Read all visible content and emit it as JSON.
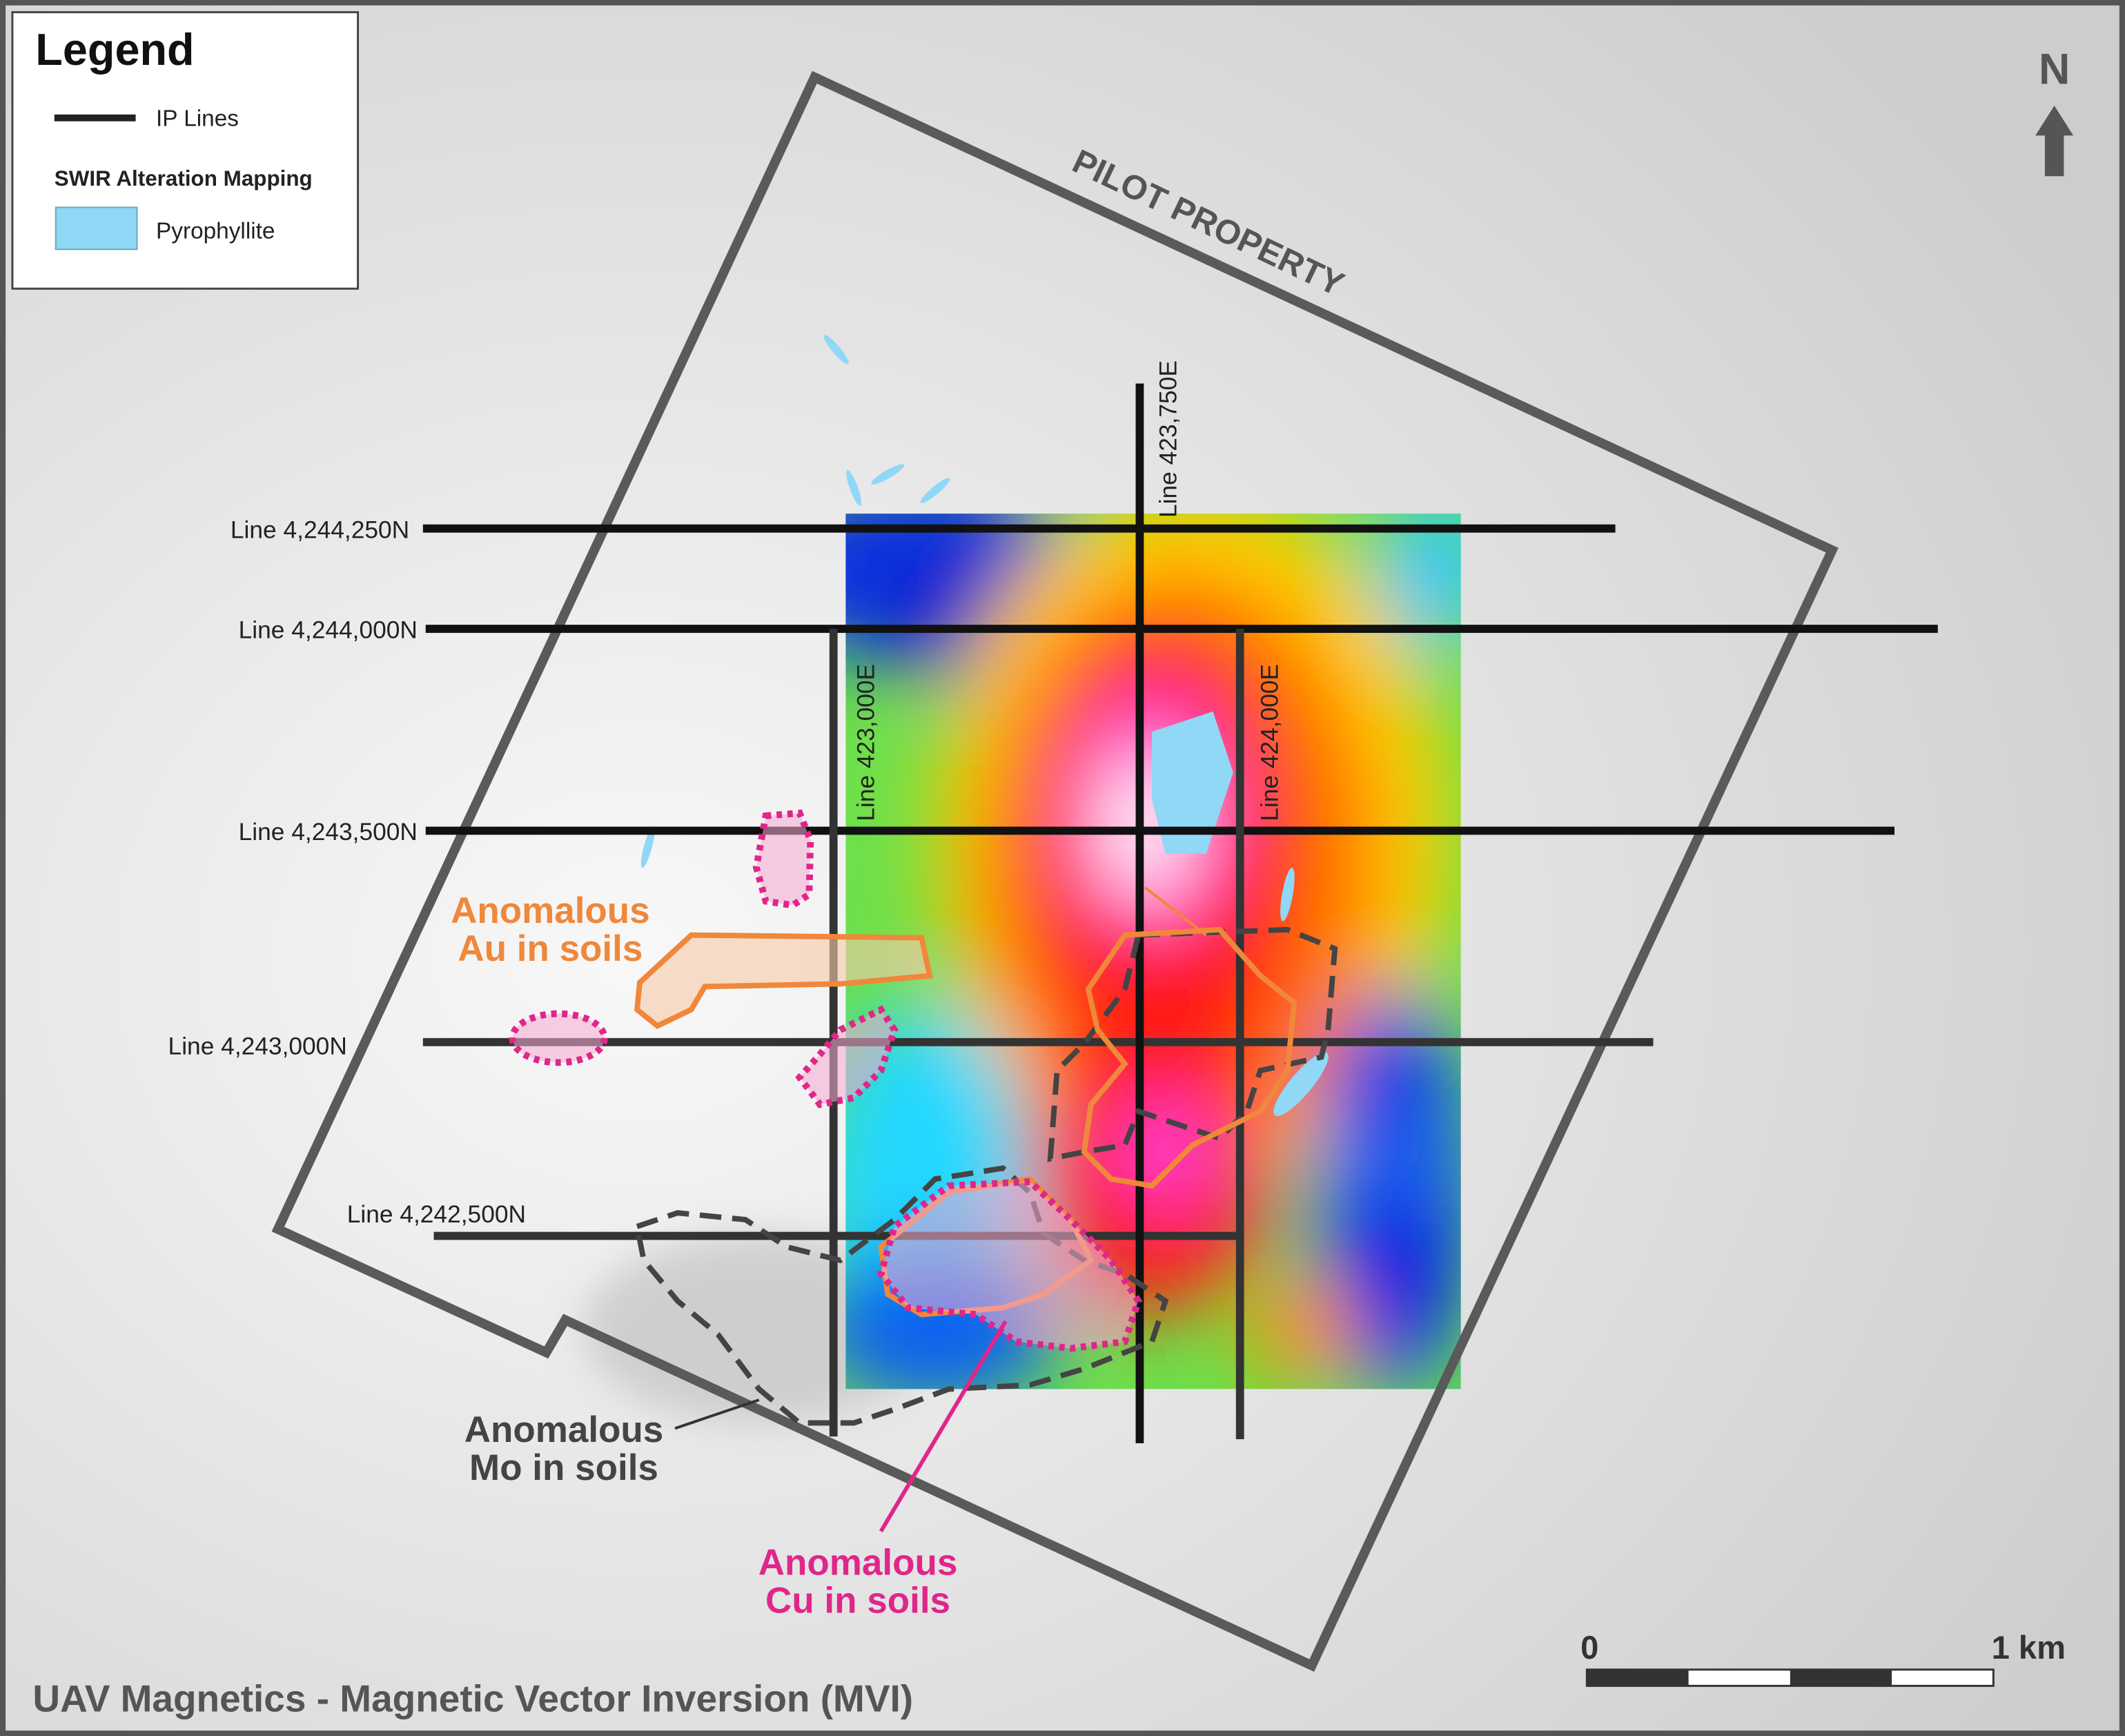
{
  "legend": {
    "title": "Legend",
    "ip_lines": "IP Lines",
    "section": "SWIR Alteration Mapping",
    "pyrophyllite": "Pyrophyllite"
  },
  "north": "N",
  "property": "PILOT PROPERTY",
  "lines": [
    "Line 4,244,250N",
    "Line 4,244,000N",
    "Line 4,243,500N",
    "Line 4,243,000N",
    "Line 4,242,500N",
    "Line 423,750E",
    "Line 423,000E",
    "Line 424,000E"
  ],
  "anomalies": {
    "au": [
      "Anomalous",
      "Au in soils"
    ],
    "mo": [
      "Anomalous",
      "Mo in soils"
    ],
    "cu": [
      "Anomalous",
      "Cu in soils"
    ]
  },
  "scale": {
    "start": "0",
    "end": "1 km"
  },
  "footer": "UAV Magnetics - Magnetic Vector Inversion (MVI)"
}
